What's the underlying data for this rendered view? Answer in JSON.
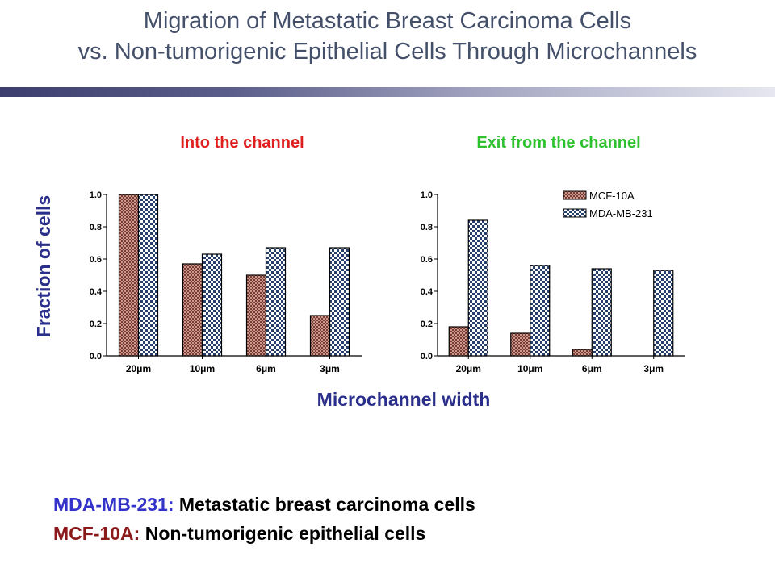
{
  "slide": {
    "title_line1": "Migration of Metastatic Breast Carcinoma Cells",
    "title_line2": "vs. Non-tumorigenic Epithelial Cells Through Microchannels",
    "ylabel": "Fraction of cells",
    "xlabel": "Microchannel width",
    "footnotes": [
      {
        "key": "MDA-MB-231:",
        "text": " Metastatic breast carcinoma cells",
        "color": "#3333cc"
      },
      {
        "key": "MCF-10A:",
        "text": " Non-tumorigenic epithelial cells",
        "color": "#8b1a1a"
      }
    ]
  },
  "chart_data": [
    {
      "type": "bar",
      "title": "Into the channel",
      "title_color": "#e02020",
      "categories": [
        "20μm",
        "10μm",
        "6μm",
        "3μm"
      ],
      "series": [
        {
          "name": "MCF-10A",
          "values": [
            1.0,
            0.57,
            0.5,
            0.25
          ],
          "pattern": "red-check"
        },
        {
          "name": "MDA-MB-231",
          "values": [
            1.0,
            0.63,
            0.67,
            0.67
          ],
          "pattern": "blue-check"
        }
      ],
      "yticks": [
        "0.0",
        "0.2",
        "0.4",
        "0.6",
        "0.8",
        "1.0"
      ],
      "ylim": [
        0,
        1.0
      ],
      "legend": "none"
    },
    {
      "type": "bar",
      "title": "Exit from the channel",
      "title_color": "#2ec22e",
      "categories": [
        "20μm",
        "10μm",
        "6μm",
        "3μm"
      ],
      "series": [
        {
          "name": "MCF-10A",
          "values": [
            0.18,
            0.14,
            0.04,
            0.0
          ],
          "pattern": "red-check"
        },
        {
          "name": "MDA-MB-231",
          "values": [
            0.84,
            0.56,
            0.54,
            0.53
          ],
          "pattern": "blue-check"
        }
      ],
      "yticks": [
        "0.0",
        "0.2",
        "0.4",
        "0.6",
        "0.8",
        "1.0"
      ],
      "ylim": [
        0,
        1.0
      ],
      "legend": "top-right"
    }
  ]
}
